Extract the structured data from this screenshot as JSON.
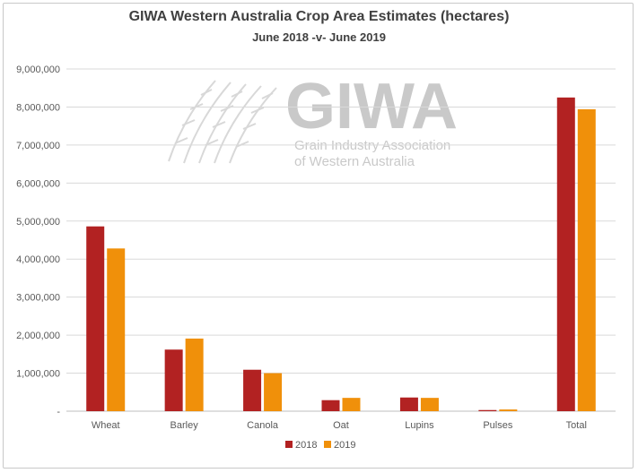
{
  "chart_data": {
    "type": "bar",
    "title": "GIWA Western Australia Crop Area Estimates (hectares)",
    "subtitle": "June 2018 -v- June 2019",
    "categories": [
      "Wheat",
      "Barley",
      "Canola",
      "Oat",
      "Lupins",
      "Pulses",
      "Total"
    ],
    "series": [
      {
        "name": "2018",
        "color": "#b22222",
        "values": [
          4860000,
          1620000,
          1090000,
          290000,
          360000,
          30000,
          8250000
        ]
      },
      {
        "name": "2019",
        "color": "#f0900a",
        "values": [
          4280000,
          1910000,
          1000000,
          350000,
          350000,
          45000,
          7940000
        ]
      }
    ],
    "ylim": [
      0,
      9000000
    ],
    "yticks": [
      0,
      1000000,
      2000000,
      3000000,
      4000000,
      5000000,
      6000000,
      7000000,
      8000000,
      9000000
    ],
    "ytick_labels": [
      "-",
      "1,000,000",
      "2,000,000",
      "3,000,000",
      "4,000,000",
      "5,000,000",
      "6,000,000",
      "7,000,000",
      "8,000,000",
      "9,000,000"
    ],
    "grid": true,
    "legend_position": "bottom-center"
  },
  "watermark": {
    "logo_text": "GIWA",
    "line1": "Grain Industry Association",
    "line2": "of Western Australia"
  }
}
